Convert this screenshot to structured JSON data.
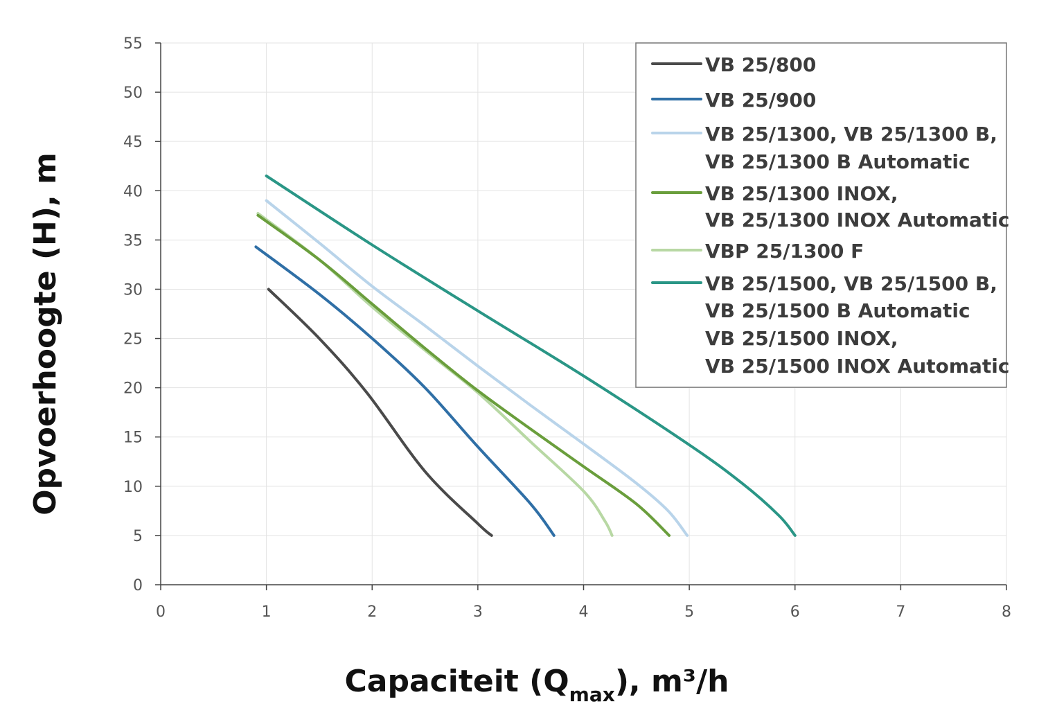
{
  "chart_data": {
    "type": "line",
    "title": "",
    "ylabel": "Opvoerhoogte (H), m",
    "xlabel": {
      "main": "Capaciteit (Q",
      "subscript": "max",
      "suffix": "), m³/h"
    },
    "xlim": [
      0,
      8
    ],
    "ylim": [
      0,
      55
    ],
    "xticks": [
      0,
      1,
      2,
      3,
      4,
      5,
      6,
      7,
      8
    ],
    "yticks": [
      0,
      5,
      10,
      15,
      20,
      25,
      30,
      35,
      40,
      45,
      50,
      55
    ],
    "grid": true,
    "legend_position": "top-right",
    "series": [
      {
        "name": "VB 25/800",
        "legend_lines": [
          "VB 25/800"
        ],
        "color": "#4a4a4a",
        "points": [
          [
            1.02,
            30
          ],
          [
            1.5,
            25
          ],
          [
            1.95,
            19.5
          ],
          [
            2.5,
            11.5
          ],
          [
            3.0,
            6.2
          ],
          [
            3.13,
            5
          ]
        ]
      },
      {
        "name": "VB 25/900",
        "legend_lines": [
          "VB 25/900"
        ],
        "color": "#2f6fa6",
        "points": [
          [
            0.9,
            34.3
          ],
          [
            1.5,
            29.5
          ],
          [
            2.0,
            25
          ],
          [
            2.5,
            20
          ],
          [
            3.0,
            14
          ],
          [
            3.5,
            8.2
          ],
          [
            3.72,
            5
          ]
        ]
      },
      {
        "name": "VB 25/1300, VB 25/1300 B, VB 25/1300 B Automatic",
        "legend_lines": [
          "VB 25/1300, VB 25/1300 B,",
          "VB 25/1300 B Automatic"
        ],
        "color": "#b9d4ea",
        "points": [
          [
            1.0,
            39
          ],
          [
            1.5,
            34.7
          ],
          [
            2.0,
            30.3
          ],
          [
            2.5,
            26.3
          ],
          [
            3.0,
            22.2
          ],
          [
            3.5,
            18.2
          ],
          [
            4.0,
            14.3
          ],
          [
            4.5,
            10.3
          ],
          [
            4.8,
            7.5
          ],
          [
            4.98,
            5
          ]
        ]
      },
      {
        "name": "VB 25/1300 INOX, VB 25/1300 INOX Automatic",
        "legend_lines": [
          "VB 25/1300 INOX,",
          "VB 25/1300 INOX Automatic"
        ],
        "color": "#6a9e3c",
        "points": [
          [
            0.92,
            37.5
          ],
          [
            1.5,
            33
          ],
          [
            2.0,
            28.5
          ],
          [
            2.5,
            24
          ],
          [
            3.0,
            19.7
          ],
          [
            3.5,
            15.8
          ],
          [
            4.0,
            12
          ],
          [
            4.5,
            8.2
          ],
          [
            4.81,
            5
          ]
        ]
      },
      {
        "name": "VBP 25/1300 F",
        "legend_lines": [
          "VBP 25/1300 F"
        ],
        "color": "#b8d8a4",
        "points": [
          [
            0.92,
            37.7
          ],
          [
            1.5,
            33
          ],
          [
            2.0,
            28.2
          ],
          [
            2.5,
            23.8
          ],
          [
            3.0,
            19.5
          ],
          [
            3.5,
            14.5
          ],
          [
            4.0,
            9.5
          ],
          [
            4.2,
            6.5
          ],
          [
            4.27,
            5
          ]
        ]
      },
      {
        "name": "VB 25/1500, VB 25/1500 B, VB 25/1500 B Automatic, VB 25/1500 INOX, VB 25/1500 INOX Automatic",
        "legend_lines": [
          "VB 25/1500, VB 25/1500 B,",
          "VB 25/1500 B Automatic",
          "VB 25/1500 INOX,",
          "VB 25/1500 INOX Automatic"
        ],
        "color": "#2a9686",
        "points": [
          [
            1.0,
            41.5
          ],
          [
            2.0,
            34.5
          ],
          [
            3.0,
            27.8
          ],
          [
            4.0,
            21.2
          ],
          [
            5.0,
            14.2
          ],
          [
            5.5,
            10.3
          ],
          [
            5.85,
            7
          ],
          [
            6.0,
            5
          ]
        ]
      }
    ]
  }
}
